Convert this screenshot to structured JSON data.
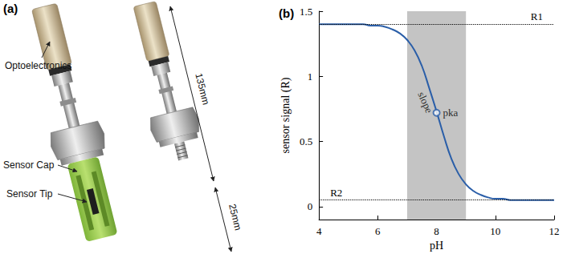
{
  "panel_a": {
    "label": "(a)",
    "callouts": [
      "Optoelectronics",
      "Sensor Cap",
      "Sensor Tip"
    ],
    "dimensions": [
      "135mm",
      "25mm"
    ]
  },
  "chart_data": {
    "type": "line",
    "title": "(b)",
    "x_label": "pH",
    "y_label": "sensor signal (R)",
    "x": [
      4,
      4.25,
      4.5,
      4.75,
      5,
      5.25,
      5.5,
      5.75,
      6,
      6.25,
      6.5,
      6.75,
      7,
      7.25,
      7.5,
      7.75,
      8,
      8.25,
      8.5,
      8.75,
      9,
      9.25,
      9.5,
      9.75,
      10,
      10.25,
      10.5,
      10.75,
      11,
      11.25,
      11.5,
      11.75,
      12
    ],
    "values": [
      1.4,
      1.4,
      1.4,
      1.4,
      1.4,
      1.4,
      1.4,
      1.39,
      1.39,
      1.38,
      1.36,
      1.33,
      1.28,
      1.2,
      1.08,
      0.91,
      0.73,
      0.54,
      0.37,
      0.25,
      0.17,
      0.12,
      0.09,
      0.07,
      0.06,
      0.06,
      0.05,
      0.05,
      0.05,
      0.05,
      0.05,
      0.05,
      0.05
    ],
    "color": "#2a5ea8",
    "xlim": [
      4,
      12
    ],
    "xticks": [
      4,
      6,
      8,
      10,
      12
    ],
    "ylim": [
      -0.1,
      1.5
    ],
    "yticks": [
      0,
      0.5,
      1,
      1.5
    ],
    "grid": false,
    "shaded_range": {
      "from": 7,
      "to": 9,
      "color": "#c4c4c4"
    },
    "reference_lines": [
      {
        "label": "R1",
        "value": 1.4,
        "color": "#000000",
        "line_style": "dotted"
      },
      {
        "label": "R2",
        "value": 0.05,
        "color": "#000000",
        "line_style": "dotted"
      }
    ],
    "annotations": [
      {
        "text": "pka",
        "x": 8,
        "y": 0.72,
        "marker": "circle"
      },
      {
        "text": "slope",
        "x": 7.62,
        "y": 0.8
      }
    ]
  }
}
